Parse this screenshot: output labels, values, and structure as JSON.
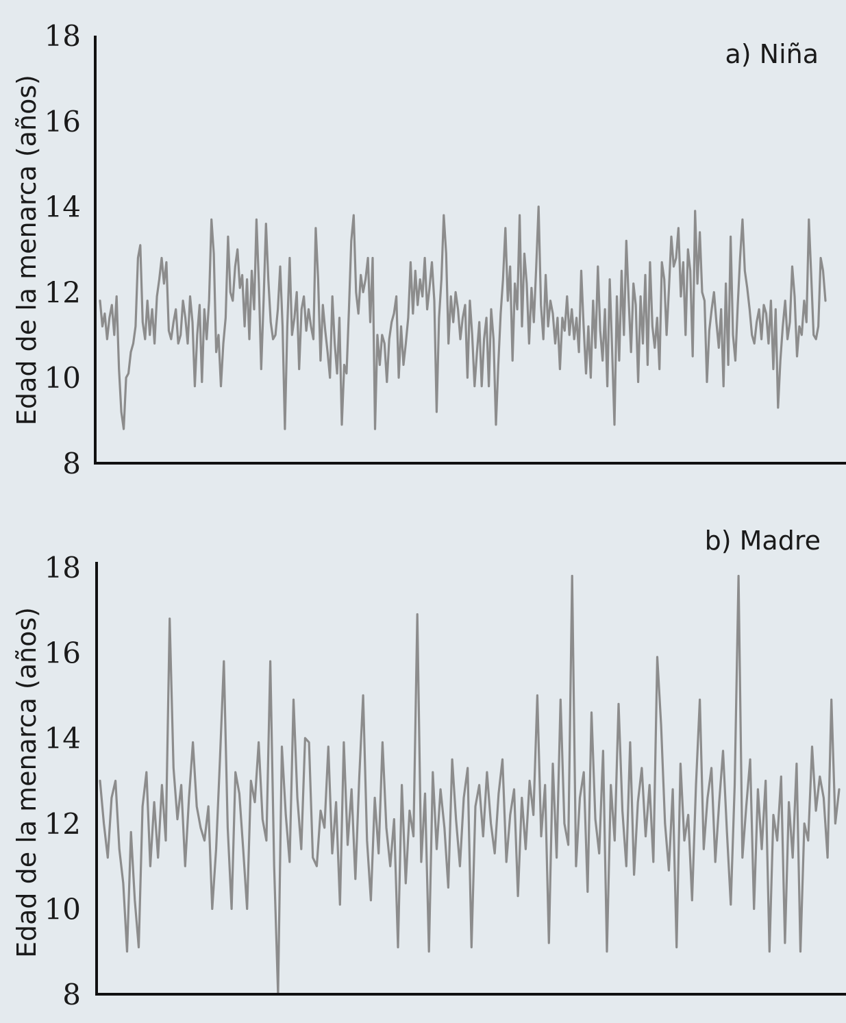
{
  "chart_data": [
    {
      "type": "line",
      "panel_label": "a) Niña",
      "ylabel": "Edad de la menarca (años)",
      "xlabel": "",
      "ylim": [
        8,
        18
      ],
      "yticks": [
        "8",
        "10",
        "12",
        "14",
        "16",
        "18"
      ],
      "grid": false,
      "line_color": "#8c8c8c",
      "series": [
        {
          "values": [
            11.8,
            11.2,
            11.5,
            10.9,
            11.4,
            11.7,
            11.0,
            11.9,
            10.2,
            9.2,
            8.8,
            10.0,
            10.1,
            10.6,
            10.8,
            11.2,
            12.8,
            13.1,
            11.3,
            10.9,
            11.8,
            11.0,
            11.6,
            10.8,
            11.9,
            12.3,
            12.8,
            12.2,
            12.7,
            11.1,
            10.9,
            11.3,
            11.6,
            10.8,
            11.0,
            11.8,
            11.4,
            10.8,
            11.9,
            11.3,
            9.8,
            11.0,
            11.7,
            9.9,
            11.6,
            10.9,
            11.8,
            13.7,
            12.9,
            10.6,
            11.0,
            9.8,
            10.8,
            11.4,
            13.3,
            12.0,
            11.8,
            12.6,
            13.0,
            12.1,
            12.4,
            11.2,
            12.3,
            10.9,
            12.5,
            11.6,
            13.7,
            12.2,
            10.2,
            11.8,
            13.6,
            12.3,
            11.3,
            10.9,
            11.0,
            11.6,
            12.6,
            11.2,
            8.8,
            11.2,
            12.8,
            11.0,
            11.4,
            12.0,
            10.2,
            11.6,
            11.9,
            11.1,
            11.6,
            11.2,
            10.9,
            13.5,
            12.3,
            10.4,
            11.7,
            11.1,
            10.6,
            10.0,
            11.9,
            10.8,
            10.1,
            11.4,
            8.9,
            10.3,
            10.1,
            11.6,
            13.2,
            13.8,
            12.0,
            11.5,
            12.4,
            12.0,
            12.3,
            12.8,
            11.3,
            12.8,
            8.8,
            11.0,
            10.3,
            11.0,
            10.8,
            9.9,
            10.9,
            11.3,
            11.5,
            11.9,
            10.0,
            11.2,
            10.3,
            10.8,
            11.4,
            12.7,
            11.5,
            12.5,
            11.7,
            12.3,
            11.9,
            12.8,
            11.6,
            12.1,
            12.7,
            11.8,
            9.2,
            11.4,
            12.3,
            13.8,
            12.9,
            10.8,
            11.9,
            11.3,
            12.0,
            11.6,
            10.9,
            11.4,
            11.7,
            10.0,
            11.8,
            11.0,
            9.8,
            10.6,
            11.3,
            9.8,
            10.9,
            11.4,
            9.8,
            11.6,
            10.9,
            8.9,
            10.3,
            11.5,
            12.3,
            13.5,
            11.8,
            12.6,
            10.4,
            12.2,
            11.6,
            13.8,
            11.2,
            12.9,
            12.2,
            10.8,
            12.1,
            11.3,
            12.6,
            14.0,
            11.7,
            10.9,
            12.4,
            11.2,
            11.8,
            11.5,
            10.8,
            11.4,
            10.2,
            11.4,
            11.1,
            11.9,
            11.0,
            11.6,
            10.9,
            11.4,
            10.6,
            12.5,
            11.2,
            10.1,
            11.2,
            10.0,
            11.8,
            10.7,
            12.6,
            11.1,
            10.4,
            11.6,
            9.8,
            12.3,
            10.7,
            8.9,
            11.9,
            10.4,
            12.5,
            11.0,
            13.2,
            11.8,
            10.6,
            12.2,
            11.7,
            9.9,
            11.9,
            10.8,
            12.4,
            10.3,
            12.7,
            11.2,
            10.7,
            11.4,
            10.2,
            12.7,
            12.3,
            11.0,
            12.1,
            13.3,
            12.6,
            12.8,
            13.5,
            11.9,
            12.7,
            11.0,
            13.0,
            12.5,
            10.5,
            13.9,
            12.2,
            13.4,
            12.0,
            11.8,
            9.9,
            11.1,
            11.6,
            12.0,
            11.3,
            10.7,
            11.6,
            9.8,
            12.2,
            10.3,
            13.3,
            11.0,
            10.4,
            11.7,
            12.8,
            13.7,
            12.5,
            12.1,
            11.6,
            11.0,
            10.8,
            11.3,
            11.6,
            10.9,
            11.7,
            11.5,
            10.8,
            11.8,
            10.2,
            11.6,
            9.3,
            10.4,
            11.2,
            11.8,
            10.9,
            11.3,
            12.6,
            11.9,
            10.5,
            11.2,
            11.0,
            11.8,
            11.3,
            13.7,
            12.4,
            11.0,
            10.9,
            11.2,
            12.8,
            12.5,
            11.8
          ]
        }
      ]
    },
    {
      "type": "line",
      "panel_label": "b) Madre",
      "ylabel": "Edad de la menarca (años)",
      "xlabel": "",
      "ylim": [
        8,
        18
      ],
      "yticks": [
        "8",
        "10",
        "12",
        "14",
        "16",
        "18"
      ],
      "grid": false,
      "line_color": "#8c8c8c",
      "series": [
        {
          "values": [
            13.0,
            12.0,
            11.2,
            12.6,
            13.0,
            11.4,
            10.6,
            9.0,
            11.8,
            10.2,
            9.1,
            12.4,
            13.2,
            11.0,
            12.5,
            11.2,
            12.9,
            11.6,
            16.8,
            13.3,
            12.1,
            12.9,
            11.0,
            12.6,
            13.9,
            12.4,
            11.9,
            11.6,
            12.4,
            10.0,
            11.4,
            13.5,
            15.8,
            11.9,
            10.0,
            13.2,
            12.7,
            11.4,
            10.0,
            13.0,
            12.5,
            13.9,
            12.1,
            11.6,
            15.8,
            11.0,
            8.0,
            13.8,
            12.2,
            11.1,
            14.9,
            12.6,
            11.4,
            14.0,
            13.9,
            11.2,
            11.0,
            12.3,
            11.9,
            13.8,
            11.3,
            12.5,
            10.1,
            13.9,
            11.5,
            12.8,
            10.7,
            13.1,
            15.0,
            11.6,
            10.2,
            12.6,
            11.3,
            13.9,
            11.9,
            11.0,
            12.1,
            9.1,
            12.9,
            10.6,
            12.3,
            11.7,
            16.9,
            11.1,
            12.7,
            9.0,
            13.2,
            11.4,
            12.8,
            11.9,
            10.5,
            13.5,
            12.1,
            11.0,
            12.6,
            13.3,
            9.1,
            12.4,
            12.9,
            11.7,
            13.2,
            12.0,
            11.3,
            12.7,
            13.5,
            11.1,
            12.2,
            12.8,
            10.3,
            12.6,
            11.4,
            13.0,
            12.2,
            15.0,
            11.7,
            12.9,
            9.2,
            13.4,
            11.2,
            14.9,
            12.0,
            11.5,
            17.8,
            11.0,
            12.6,
            13.2,
            10.4,
            14.6,
            12.1,
            11.3,
            13.7,
            9.0,
            12.9,
            11.6,
            14.8,
            12.3,
            11.0,
            13.9,
            10.8,
            12.5,
            13.3,
            11.7,
            12.9,
            11.1,
            15.9,
            14.3,
            12.0,
            10.9,
            12.8,
            9.1,
            13.4,
            11.6,
            12.2,
            10.2,
            12.9,
            14.9,
            11.4,
            12.6,
            13.3,
            11.1,
            12.5,
            13.7,
            11.8,
            10.1,
            12.9,
            17.8,
            11.2,
            12.4,
            13.5,
            10.0,
            12.8,
            11.4,
            13.0,
            9.0,
            12.2,
            11.6,
            13.1,
            9.2,
            12.5,
            11.2,
            13.4,
            9.0,
            12.0,
            11.6,
            13.8,
            12.3,
            13.1,
            12.6,
            11.2,
            14.9,
            12.0,
            12.8
          ],
          "_comment": "approximate reading of the dense mother series"
        }
      ]
    }
  ]
}
